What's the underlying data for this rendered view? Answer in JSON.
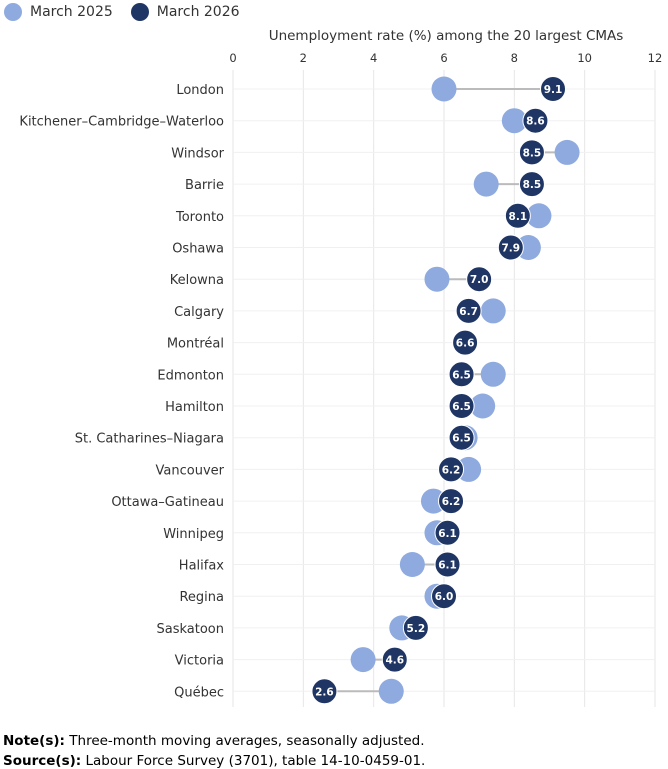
{
  "legend": {
    "items": [
      {
        "label": "March 2025",
        "color": "#8eaadf"
      },
      {
        "label": "March 2026",
        "color": "#1f3564"
      }
    ]
  },
  "chart_data": {
    "type": "dumbbell",
    "title": "Unemployment rate (%) among the 20 largest CMAs",
    "xlim": [
      0,
      12
    ],
    "xticks": [
      "0",
      "2",
      "4",
      "6",
      "8",
      "10",
      "12"
    ],
    "grid": true,
    "legend_position": "top-left",
    "categories": [
      "London",
      "Kitchener–Cambridge–Waterloo",
      "Windsor",
      "Barrie",
      "Toronto",
      "Oshawa",
      "Kelowna",
      "Calgary",
      "Montréal",
      "Edmonton",
      "Hamilton",
      "St. Catharines–Niagara",
      "Vancouver",
      "Ottawa–Gatineau",
      "Winnipeg",
      "Halifax",
      "Regina",
      "Saskatoon",
      "Victoria",
      "Québec"
    ],
    "series": [
      {
        "name": "March 2025",
        "color": "#8eaadf",
        "values": [
          6.0,
          8.0,
          9.5,
          7.2,
          8.7,
          8.4,
          5.8,
          7.4,
          6.6,
          7.4,
          7.1,
          6.6,
          6.7,
          5.7,
          5.8,
          5.1,
          5.8,
          4.8,
          3.7,
          4.5
        ]
      },
      {
        "name": "March 2026",
        "color": "#1f3564",
        "values": [
          9.1,
          8.6,
          8.5,
          8.5,
          8.1,
          7.9,
          7.0,
          6.7,
          6.6,
          6.5,
          6.5,
          6.5,
          6.2,
          6.2,
          6.1,
          6.1,
          6.0,
          5.2,
          4.6,
          2.6
        ]
      }
    ],
    "data_labels": [
      "9.1",
      "8.6",
      "8.5",
      "8.5",
      "8.1",
      "7.9",
      "7.0",
      "6.7",
      "6.6",
      "6.5",
      "6.5",
      "6.5",
      "6.2",
      "6.2",
      "6.1",
      "6.1",
      "6.0",
      "5.2",
      "4.6",
      "2.6"
    ]
  },
  "footnotes": {
    "note_label": "Note(s):",
    "note_text": " Three-month moving averages, seasonally adjusted.",
    "source_label": "Source(s):",
    "source_text": " Labour Force Survey (3701), table 14-10-0459-01."
  }
}
